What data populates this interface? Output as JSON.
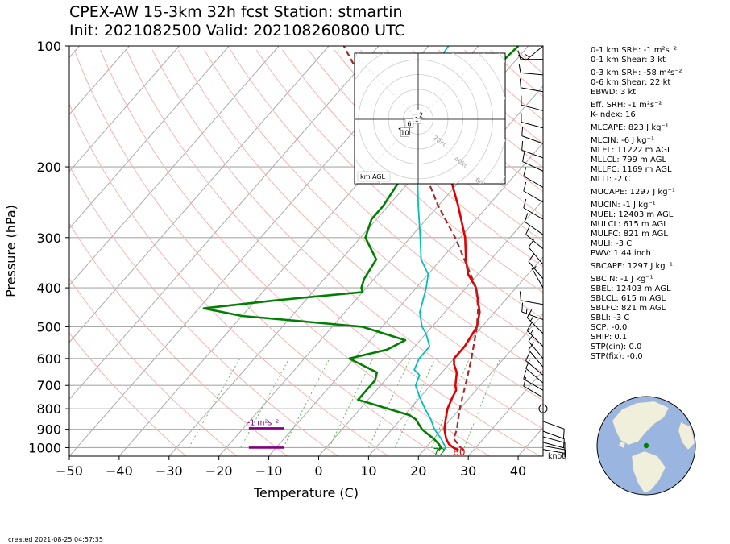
{
  "title": {
    "line1": "CPEX-AW 15-3km  32h fcst  Station: stmartin",
    "line2": "Init: 2021082500  Valid: 202108260800 UTC"
  },
  "footer": {
    "created": "created 2021-08-25 04:57:35"
  },
  "indices": [
    {
      "text": "0-1 km SRH: -1 m²s⁻²",
      "group_start": true
    },
    {
      "text": "0-1 km Shear: 3 kt"
    },
    {
      "text": "0-3 km SRH: -58 m²s⁻²",
      "group_start": true
    },
    {
      "text": "0-6 km Shear: 22 kt"
    },
    {
      "text": "EBWD: 3 kt"
    },
    {
      "text": "Eff. SRH: -1 m²s⁻²",
      "group_start": true
    },
    {
      "text": "K-index: 16"
    },
    {
      "text": "MLCAPE: 823 J kg⁻¹",
      "group_start": true
    },
    {
      "text": "MLCIN: -6 J kg⁻¹",
      "group_start": true
    },
    {
      "text": "MLEL: 11222 m AGL"
    },
    {
      "text": "MLLCL: 799 m AGL"
    },
    {
      "text": "MLLFC: 1169 m AGL"
    },
    {
      "text": "MLLI: -2 C"
    },
    {
      "text": "MUCAPE: 1297 J kg⁻¹",
      "group_start": true
    },
    {
      "text": "MUCIN: -1 J kg⁻¹",
      "group_start": true
    },
    {
      "text": "MUEL: 12403 m AGL"
    },
    {
      "text": "MULCL: 615 m AGL"
    },
    {
      "text": "MULFC: 821 m AGL"
    },
    {
      "text": "MULI: -3 C"
    },
    {
      "text": "PWV: 1.44 inch"
    },
    {
      "text": "SBCAPE: 1297 J kg⁻¹",
      "group_start": true
    },
    {
      "text": "SBCIN: -1 J kg⁻¹",
      "group_start": true
    },
    {
      "text": "SBEL: 12403 m AGL"
    },
    {
      "text": "SBLCL: 615 m AGL"
    },
    {
      "text": "SBLFC: 821 m AGL"
    },
    {
      "text": "SBLI: -3 C"
    },
    {
      "text": "SCP: -0.0"
    },
    {
      "text": "SHIP: 0.1"
    },
    {
      "text": "STP(cin): 0.0"
    },
    {
      "text": "STP(fix): -0.0"
    }
  ],
  "colors": {
    "temperature": "#e00000",
    "dewpoint": "#008000",
    "wetbulb": "#00bfbf",
    "parcel": "#a52a2a",
    "srh": "#800080",
    "dry_adiabat": "#f4b4b0",
    "mixing_ratio": "#66bb66",
    "isotherm": "#aaaaaa",
    "globe_ocean": "#9ab6e0",
    "globe_land": "#efefdc",
    "station": "#008000"
  },
  "chart_data": {
    "type": "line",
    "subtype": "skew-T log-p sounding",
    "xlabel": "Temperature (C)",
    "ylabel": "Pressure (hPa)",
    "xlim": [
      -50,
      45
    ],
    "ylim": [
      1050,
      100
    ],
    "y_scale": "log",
    "xticks": [
      -50,
      -40,
      -30,
      -20,
      -10,
      0,
      10,
      20,
      30,
      40
    ],
    "yticks": [
      100,
      200,
      300,
      400,
      500,
      600,
      700,
      800,
      900,
      1000
    ],
    "grid": true,
    "series": [
      {
        "key": "temperature",
        "points": [
          [
            1014,
            27
          ],
          [
            1000,
            25.5
          ],
          [
            980,
            24
          ],
          [
            950,
            22.5
          ],
          [
            925,
            21.5
          ],
          [
            900,
            20.5
          ],
          [
            850,
            19
          ],
          [
            800,
            17.5
          ],
          [
            750,
            16.5
          ],
          [
            720,
            16
          ],
          [
            700,
            15
          ],
          [
            650,
            13
          ],
          [
            620,
            11
          ],
          [
            600,
            10
          ],
          [
            560,
            10
          ],
          [
            500,
            9
          ],
          [
            460,
            7
          ],
          [
            400,
            2
          ],
          [
            370,
            -2
          ],
          [
            340,
            -5
          ],
          [
            300,
            -9
          ],
          [
            250,
            -16
          ],
          [
            200,
            -25
          ],
          [
            150,
            -37
          ],
          [
            120,
            -47
          ]
        ]
      },
      {
        "key": "dewpoint",
        "points": [
          [
            1014,
            23
          ],
          [
            1000,
            23
          ],
          [
            980,
            22
          ],
          [
            950,
            20
          ],
          [
            925,
            18
          ],
          [
            900,
            16
          ],
          [
            850,
            13
          ],
          [
            830,
            11
          ],
          [
            760,
            -2
          ],
          [
            700,
            -2
          ],
          [
            680,
            -2
          ],
          [
            650,
            -3
          ],
          [
            600,
            -11
          ],
          [
            570,
            -5
          ],
          [
            540,
            -3
          ],
          [
            500,
            -14
          ],
          [
            470,
            -40
          ],
          [
            450,
            -49
          ],
          [
            430,
            -36
          ],
          [
            410,
            -20
          ],
          [
            400,
            -21
          ],
          [
            380,
            -22
          ],
          [
            340,
            -23
          ],
          [
            300,
            -29
          ],
          [
            270,
            -31
          ],
          [
            250,
            -31
          ],
          [
            220,
            -32
          ],
          [
            200,
            -34
          ],
          [
            180,
            -37
          ],
          [
            170,
            -38
          ],
          [
            150,
            -36
          ],
          [
            130,
            -34
          ],
          [
            120,
            -33
          ],
          [
            100,
            -32
          ]
        ]
      },
      {
        "key": "wetbulb",
        "points": [
          [
            1014,
            24
          ],
          [
            1000,
            24
          ],
          [
            980,
            23
          ],
          [
            950,
            21.5
          ],
          [
            925,
            20
          ],
          [
            900,
            18.5
          ],
          [
            850,
            16
          ],
          [
            800,
            13
          ],
          [
            750,
            10
          ],
          [
            700,
            7
          ],
          [
            660,
            6
          ],
          [
            640,
            4
          ],
          [
            600,
            3
          ],
          [
            560,
            3
          ],
          [
            520,
            0
          ],
          [
            500,
            -2
          ],
          [
            460,
            -5
          ],
          [
            400,
            -8
          ],
          [
            370,
            -10
          ],
          [
            340,
            -14
          ],
          [
            300,
            -18
          ],
          [
            250,
            -24
          ],
          [
            200,
            -31
          ],
          [
            150,
            -38
          ],
          [
            130,
            -42
          ],
          [
            115,
            -45
          ],
          [
            100,
            -46
          ]
        ]
      },
      {
        "key": "parcel",
        "points": [
          [
            1014,
            28
          ],
          [
            1000,
            27
          ],
          [
            950,
            24
          ],
          [
            900,
            23
          ],
          [
            850,
            21.5
          ],
          [
            800,
            20
          ],
          [
            750,
            18.5
          ],
          [
            700,
            17
          ],
          [
            600,
            13.5
          ],
          [
            500,
            9
          ],
          [
            450,
            6
          ],
          [
            400,
            2
          ],
          [
            350,
            -4
          ],
          [
            300,
            -11
          ],
          [
            250,
            -20
          ],
          [
            200,
            -30
          ],
          [
            150,
            -45
          ],
          [
            120,
            -58
          ],
          [
            100,
            -67
          ]
        ]
      }
    ],
    "surface_labels": {
      "dewpoint_f": "72",
      "temperature_f": "80"
    },
    "srh": {
      "label": "-1 m²s⁻²",
      "levels": [
        895,
        1000
      ],
      "value_range": [
        -14,
        -7
      ]
    },
    "winds": {
      "units": "knot",
      "barbs": [
        {
          "p": 1010,
          "speed": 10,
          "dir": 100
        },
        {
          "p": 990,
          "speed": 10,
          "dir": 100
        },
        {
          "p": 970,
          "speed": 10,
          "dir": 105
        },
        {
          "p": 940,
          "speed": 10,
          "dir": 105
        },
        {
          "p": 910,
          "speed": 10,
          "dir": 110
        },
        {
          "p": 860,
          "speed": 10,
          "dir": 110
        },
        {
          "p": 800,
          "speed": 0,
          "dir": 0
        },
        {
          "p": 750,
          "speed": 10,
          "dir": 300
        },
        {
          "p": 720,
          "speed": 10,
          "dir": 300
        },
        {
          "p": 690,
          "speed": 10,
          "dir": 310
        },
        {
          "p": 660,
          "speed": 10,
          "dir": 310
        },
        {
          "p": 630,
          "speed": 10,
          "dir": 320
        },
        {
          "p": 600,
          "speed": 10,
          "dir": 320
        },
        {
          "p": 560,
          "speed": 15,
          "dir": 315
        },
        {
          "p": 520,
          "speed": 15,
          "dir": 315
        },
        {
          "p": 480,
          "speed": 15,
          "dir": 290
        },
        {
          "p": 440,
          "speed": 10,
          "dir": 280
        },
        {
          "p": 400,
          "speed": 5,
          "dir": 330
        },
        {
          "p": 380,
          "speed": 10,
          "dir": 320
        },
        {
          "p": 350,
          "speed": 10,
          "dir": 320
        },
        {
          "p": 320,
          "speed": 10,
          "dir": 310
        },
        {
          "p": 295,
          "speed": 10,
          "dir": 305
        },
        {
          "p": 270,
          "speed": 10,
          "dir": 300
        },
        {
          "p": 245,
          "speed": 10,
          "dir": 300
        },
        {
          "p": 225,
          "speed": 10,
          "dir": 300
        },
        {
          "p": 205,
          "speed": 10,
          "dir": 295
        },
        {
          "p": 190,
          "speed": 10,
          "dir": 290
        },
        {
          "p": 175,
          "speed": 10,
          "dir": 290
        },
        {
          "p": 160,
          "speed": 10,
          "dir": 285
        },
        {
          "p": 145,
          "speed": 10,
          "dir": 285
        },
        {
          "p": 130,
          "speed": 10,
          "dir": 280
        },
        {
          "p": 118,
          "speed": 10,
          "dir": 275
        },
        {
          "p": 108,
          "speed": 10,
          "dir": 270
        },
        {
          "p": 100,
          "speed": 15,
          "dir": 230
        }
      ]
    },
    "hodograph": {
      "legend": "km AGL",
      "ring_labels": [
        "20kt",
        "40kt",
        "60kt",
        "80kt"
      ],
      "height_labels": [
        "1",
        "2",
        "6",
        "10"
      ],
      "points_kt": [
        [
          -8,
          0
        ],
        [
          -5,
          0
        ],
        [
          -3,
          0
        ],
        [
          -1,
          0
        ],
        [
          0,
          1
        ],
        [
          0,
          2
        ],
        [
          1,
          3
        ],
        [
          2,
          3
        ],
        [
          3,
          4
        ],
        [
          2,
          3
        ],
        [
          0,
          2
        ],
        [
          -2,
          0
        ],
        [
          -4,
          -1
        ],
        [
          -5,
          -2
        ],
        [
          -6,
          -3
        ],
        [
          -6,
          -5
        ],
        [
          -6,
          -8
        ],
        [
          -6,
          -10
        ],
        [
          -9,
          -9
        ],
        [
          -11,
          -8
        ],
        [
          -13,
          -6
        ]
      ]
    }
  }
}
